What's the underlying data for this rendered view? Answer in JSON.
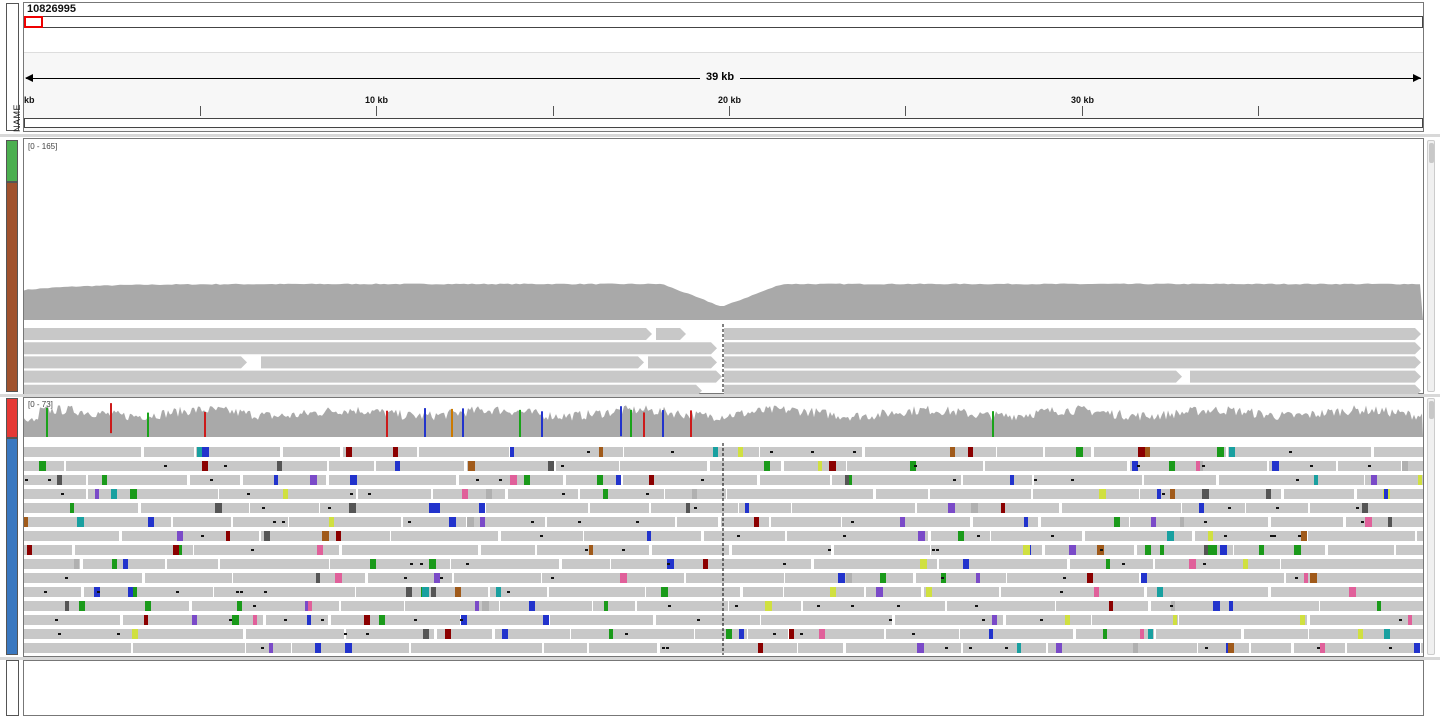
{
  "header": {
    "locus": "10826995",
    "name_column_label": "NAME"
  },
  "ruler": {
    "span_label": "39 kb",
    "ticks": [
      {
        "label": "kb"
      },
      {
        "label": ""
      },
      {
        "label": "10 kb"
      },
      {
        "label": ""
      },
      {
        "label": "20 kb"
      },
      {
        "label": ""
      },
      {
        "label": "30 kb"
      },
      {
        "label": ""
      }
    ]
  },
  "tracks": [
    {
      "id": "track-1",
      "coverage_range": "[0 - 165]",
      "tab_color_cov": "#4caf50",
      "tab_color_reads": "#a0522d"
    },
    {
      "id": "track-2",
      "coverage_range": "[0 - 73]",
      "tab_color_cov": "#e53935",
      "tab_color_reads": "#3a78c0"
    }
  ],
  "colors": {
    "coverage_fill": "#a9a9a9",
    "read_fill": "#c8c8c8",
    "mismatch_A": "#1aa31a",
    "mismatch_C": "#2233cc",
    "mismatch_G": "#cc7a00",
    "mismatch_T": "#cc1a1a"
  }
}
